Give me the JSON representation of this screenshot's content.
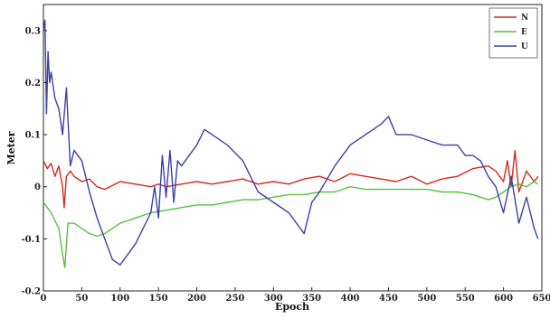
{
  "chart_data": {
    "type": "line",
    "xlabel": "Epoch",
    "ylabel": "Meter",
    "xlim": [
      0,
      650
    ],
    "ylim": [
      -0.2,
      0.35
    ],
    "x_ticks": [
      0,
      50,
      100,
      150,
      200,
      250,
      300,
      350,
      400,
      450,
      500,
      550,
      600,
      650
    ],
    "y_ticks": [
      -0.2,
      -0.1,
      0,
      0.1,
      0.2,
      0.3
    ],
    "grid": false,
    "legend_position": "top-right",
    "series": [
      {
        "name": "N",
        "color": "#d42a1e",
        "x": [
          0,
          5,
          10,
          15,
          20,
          25,
          27,
          30,
          35,
          40,
          50,
          60,
          70,
          80,
          100,
          120,
          140,
          150,
          160,
          180,
          200,
          220,
          240,
          260,
          280,
          300,
          320,
          340,
          360,
          380,
          400,
          420,
          440,
          460,
          480,
          500,
          520,
          540,
          560,
          580,
          590,
          600,
          605,
          610,
          615,
          620,
          630,
          640,
          645
        ],
        "y": [
          0.05,
          0.035,
          0.045,
          0.02,
          0.04,
          0.0,
          -0.04,
          0.02,
          0.03,
          0.02,
          0.01,
          0.015,
          0.0,
          -0.005,
          0.01,
          0.005,
          0.0,
          0.005,
          0.0,
          0.005,
          0.01,
          0.005,
          0.01,
          0.015,
          0.005,
          0.01,
          0.005,
          0.015,
          0.02,
          0.01,
          0.025,
          0.02,
          0.015,
          0.01,
          0.02,
          0.005,
          0.015,
          0.02,
          0.035,
          0.04,
          0.03,
          0.01,
          0.05,
          0.0,
          0.07,
          -0.01,
          0.03,
          0.01,
          0.02
        ]
      },
      {
        "name": "E",
        "color": "#56c13e",
        "x": [
          0,
          10,
          20,
          25,
          28,
          32,
          40,
          50,
          60,
          70,
          80,
          90,
          100,
          120,
          140,
          160,
          180,
          200,
          220,
          240,
          260,
          280,
          300,
          320,
          340,
          360,
          380,
          400,
          420,
          440,
          460,
          480,
          500,
          520,
          540,
          560,
          580,
          590,
          600,
          610,
          620,
          630,
          640,
          645
        ],
        "y": [
          -0.03,
          -0.05,
          -0.08,
          -0.13,
          -0.155,
          -0.07,
          -0.07,
          -0.08,
          -0.09,
          -0.095,
          -0.09,
          -0.08,
          -0.07,
          -0.06,
          -0.05,
          -0.045,
          -0.04,
          -0.035,
          -0.035,
          -0.03,
          -0.025,
          -0.025,
          -0.02,
          -0.015,
          -0.015,
          -0.01,
          -0.01,
          0.0,
          -0.005,
          -0.005,
          -0.005,
          -0.005,
          -0.005,
          -0.01,
          -0.01,
          -0.015,
          -0.025,
          -0.02,
          -0.01,
          0.0,
          0.005,
          0.0,
          0.01,
          0.005
        ]
      },
      {
        "name": "U",
        "color": "#3e3fa8",
        "x": [
          0,
          2,
          4,
          6,
          8,
          10,
          15,
          20,
          25,
          30,
          35,
          40,
          50,
          60,
          70,
          80,
          90,
          100,
          110,
          120,
          130,
          140,
          145,
          150,
          155,
          160,
          165,
          170,
          175,
          180,
          190,
          200,
          210,
          220,
          240,
          260,
          280,
          300,
          320,
          340,
          350,
          360,
          380,
          400,
          420,
          440,
          450,
          460,
          480,
          500,
          520,
          540,
          550,
          560,
          570,
          580,
          590,
          600,
          610,
          620,
          630,
          640,
          645
        ],
        "y": [
          0.3,
          0.32,
          0.14,
          0.26,
          0.2,
          0.22,
          0.17,
          0.15,
          0.1,
          0.19,
          0.04,
          0.07,
          0.05,
          -0.01,
          -0.06,
          -0.1,
          -0.14,
          -0.15,
          -0.13,
          -0.11,
          -0.08,
          -0.05,
          0.0,
          -0.06,
          0.06,
          -0.02,
          0.07,
          -0.03,
          0.05,
          0.04,
          0.06,
          0.08,
          0.11,
          0.1,
          0.08,
          0.05,
          -0.01,
          -0.03,
          -0.05,
          -0.09,
          -0.03,
          -0.01,
          0.04,
          0.08,
          0.1,
          0.12,
          0.135,
          0.1,
          0.1,
          0.09,
          0.08,
          0.08,
          0.06,
          0.06,
          0.05,
          0.02,
          0.0,
          -0.05,
          0.02,
          -0.07,
          -0.02,
          -0.08,
          -0.1
        ]
      }
    ]
  }
}
